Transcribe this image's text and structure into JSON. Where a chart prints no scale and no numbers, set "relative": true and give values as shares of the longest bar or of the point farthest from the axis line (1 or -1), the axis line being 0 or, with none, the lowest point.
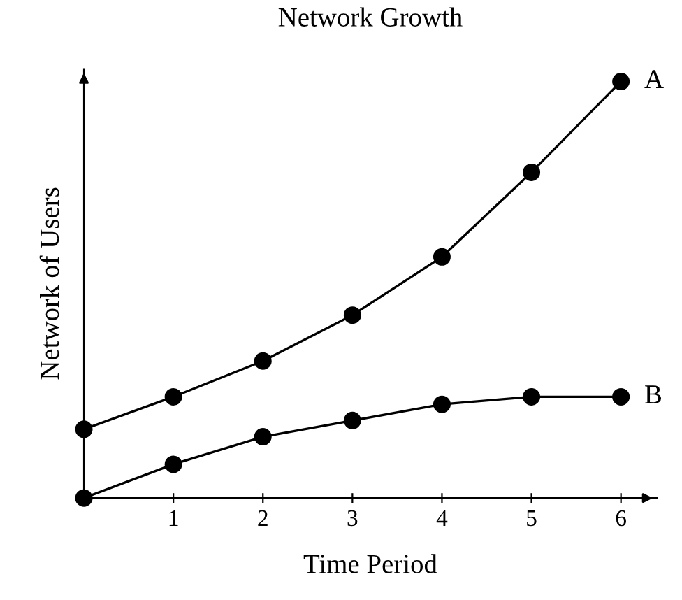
{
  "chart_data": {
    "type": "line",
    "title": "Network Growth",
    "xlabel": "Time Period",
    "ylabel": "Network of Users",
    "relative": true,
    "x": [
      0,
      1,
      2,
      3,
      4,
      5,
      6
    ],
    "xlim": [
      0,
      6.4
    ],
    "xticks": [
      {
        "value": 0,
        "label": null
      },
      1,
      2,
      3,
      4,
      5,
      6
    ],
    "marker": "circle",
    "line_style": "solid",
    "grid": false,
    "legend": false,
    "series": [
      {
        "name": "A",
        "color": "#000000",
        "values": [
          0.165,
          0.243,
          0.329,
          0.439,
          0.579,
          0.782,
          1
        ]
      },
      {
        "name": "B",
        "color": "#000000",
        "values": [
          0,
          0.081,
          0.147,
          0.186,
          0.225,
          0.243,
          0.243
        ]
      }
    ]
  }
}
